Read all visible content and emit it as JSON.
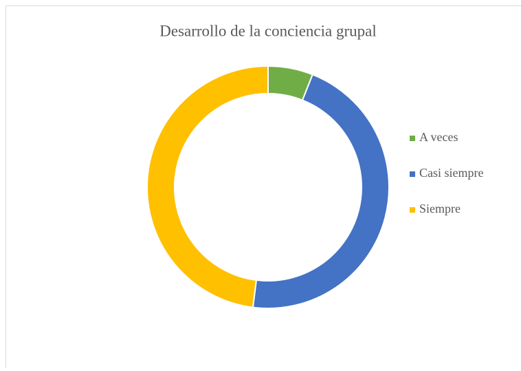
{
  "chart_data": {
    "type": "donut",
    "title": "Desarrollo de la conciencia grupal",
    "categories": [
      "A veces",
      "Casi siempre",
      "Siempre"
    ],
    "values": [
      6,
      46,
      48
    ],
    "colors": [
      "#70ad47",
      "#4472c4",
      "#ffc000"
    ],
    "legend": "right"
  }
}
